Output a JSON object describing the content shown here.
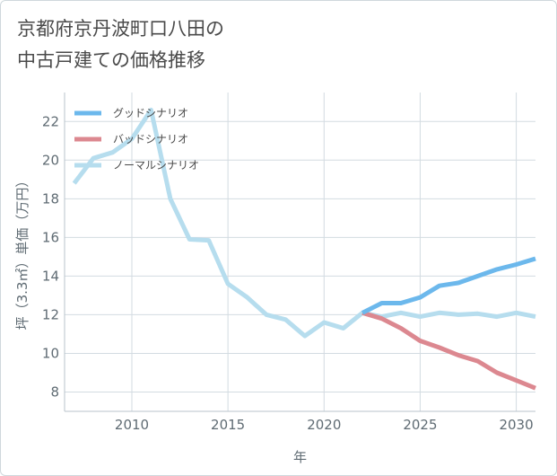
{
  "title_lines": [
    "京都府京丹波町口八田の",
    "中古戸建ての価格推移"
  ],
  "chart_data": {
    "type": "line",
    "xlabel": "年",
    "ylabel": "坪（3.3㎡）単価（万円）",
    "xlim": [
      2006.5,
      2031
    ],
    "ylim": [
      7,
      23.5
    ],
    "x_ticks": [
      2010,
      2015,
      2020,
      2025,
      2030
    ],
    "y_ticks": [
      8,
      10,
      12,
      14,
      16,
      18,
      20,
      22
    ],
    "grid": true,
    "legend_position": "top-left",
    "series": [
      {
        "name": "グッドシナリオ",
        "color": "#6cb8ec",
        "x": [
          2022,
          2023,
          2024,
          2025,
          2026,
          2027,
          2028,
          2029,
          2030,
          2031
        ],
        "y": [
          12.1,
          12.6,
          12.6,
          12.9,
          13.5,
          13.65,
          14.0,
          14.35,
          14.6,
          14.9
        ]
      },
      {
        "name": "バッドシナリオ",
        "color": "#dc8890",
        "x": [
          2022,
          2023,
          2024,
          2025,
          2026,
          2027,
          2028,
          2029,
          2030,
          2031
        ],
        "y": [
          12.1,
          11.8,
          11.3,
          10.65,
          10.3,
          9.9,
          9.6,
          9.0,
          8.6,
          8.2
        ]
      },
      {
        "name": "ノーマルシナリオ",
        "color": "#b6ddee",
        "x": [
          2007,
          2008,
          2009,
          2010,
          2011,
          2012,
          2013,
          2014,
          2015,
          2016,
          2017,
          2018,
          2019,
          2020,
          2021,
          2022,
          2023,
          2024,
          2025,
          2026,
          2027,
          2028,
          2029,
          2030,
          2031
        ],
        "y": [
          18.8,
          20.1,
          20.4,
          21.1,
          22.6,
          18.0,
          15.9,
          15.85,
          13.6,
          12.9,
          12.0,
          11.75,
          10.9,
          11.6,
          11.3,
          12.1,
          11.9,
          12.1,
          11.9,
          12.1,
          12.0,
          12.05,
          11.9,
          12.1,
          11.9
        ]
      }
    ]
  }
}
